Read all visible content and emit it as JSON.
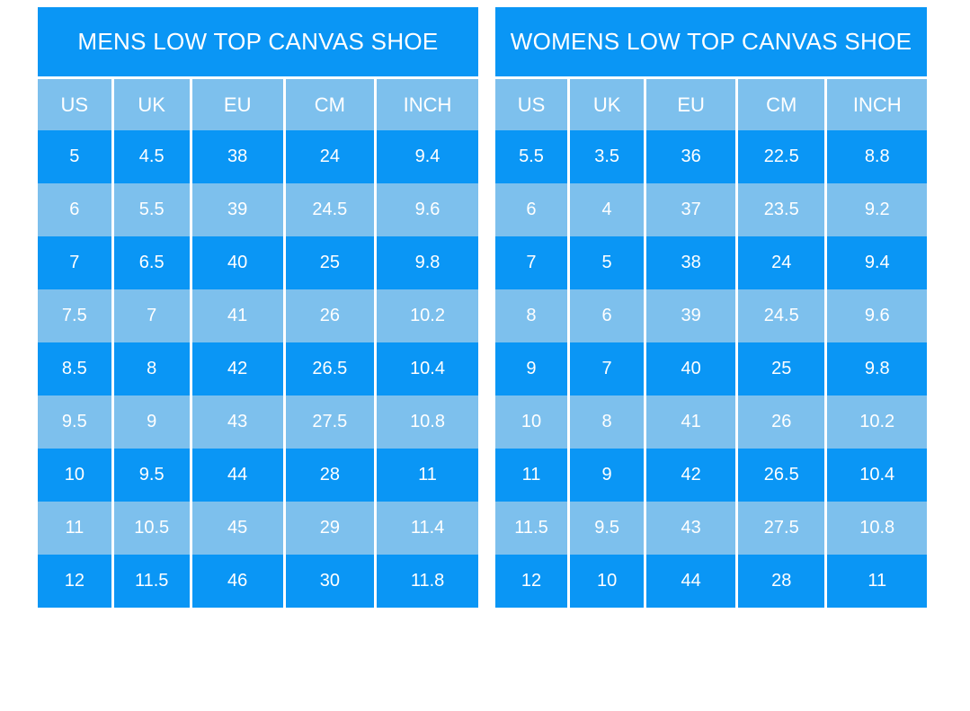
{
  "colors": {
    "row_dark": "#0A96F5",
    "row_light": "#7DC0ED",
    "separator": "#FFFFFF",
    "text": "#FFFFFF",
    "page_background": "#FFFFFF"
  },
  "chart_data": [
    {
      "type": "table",
      "title": "MENS LOW TOP CANVAS SHOE",
      "columns": [
        "US",
        "UK",
        "EU",
        "CM",
        "INCH"
      ],
      "rows": [
        [
          "5",
          "4.5",
          "38",
          "24",
          "9.4"
        ],
        [
          "6",
          "5.5",
          "39",
          "24.5",
          "9.6"
        ],
        [
          "7",
          "6.5",
          "40",
          "25",
          "9.8"
        ],
        [
          "7.5",
          "7",
          "41",
          "26",
          "10.2"
        ],
        [
          "8.5",
          "8",
          "42",
          "26.5",
          "10.4"
        ],
        [
          "9.5",
          "9",
          "43",
          "27.5",
          "10.8"
        ],
        [
          "10",
          "9.5",
          "44",
          "28",
          "11"
        ],
        [
          "11",
          "10.5",
          "45",
          "29",
          "11.4"
        ],
        [
          "12",
          "11.5",
          "46",
          "30",
          "11.8"
        ]
      ]
    },
    {
      "type": "table",
      "title": "WOMENS LOW TOP CANVAS SHOE",
      "columns": [
        "US",
        "UK",
        "EU",
        "CM",
        "INCH"
      ],
      "rows": [
        [
          "5.5",
          "3.5",
          "36",
          "22.5",
          "8.8"
        ],
        [
          "6",
          "4",
          "37",
          "23.5",
          "9.2"
        ],
        [
          "7",
          "5",
          "38",
          "24",
          "9.4"
        ],
        [
          "8",
          "6",
          "39",
          "24.5",
          "9.6"
        ],
        [
          "9",
          "7",
          "40",
          "25",
          "9.8"
        ],
        [
          "10",
          "8",
          "41",
          "26",
          "10.2"
        ],
        [
          "11",
          "9",
          "42",
          "26.5",
          "10.4"
        ],
        [
          "11.5",
          "9.5",
          "43",
          "27.5",
          "10.8"
        ],
        [
          "12",
          "10",
          "44",
          "28",
          "11"
        ]
      ]
    }
  ]
}
